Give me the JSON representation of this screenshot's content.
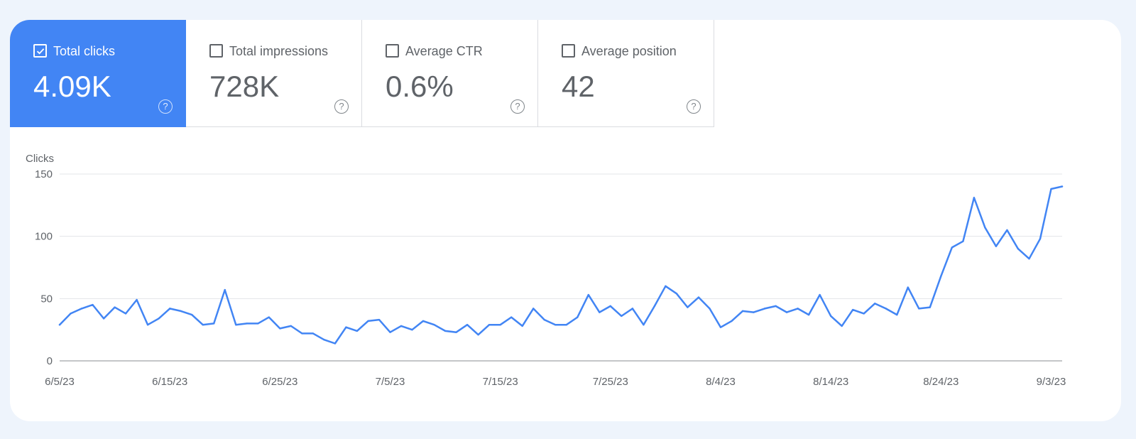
{
  "metrics": [
    {
      "label": "Total clicks",
      "value": "4.09K",
      "checked": true
    },
    {
      "label": "Total impressions",
      "value": "728K",
      "checked": false
    },
    {
      "label": "Average CTR",
      "value": "0.6%",
      "checked": false
    },
    {
      "label": "Average position",
      "value": "42",
      "checked": false
    }
  ],
  "help_glyph": "?",
  "colors": {
    "accent": "#4285f4",
    "line": "#4285f4",
    "page_bg": "#eef4fc"
  },
  "chart_data": {
    "type": "line",
    "ylabel": "Clicks",
    "ylim": [
      0,
      150
    ],
    "yticks": [
      0,
      50,
      100,
      150
    ],
    "xtick_labels": [
      "6/5/23",
      "6/15/23",
      "6/25/23",
      "7/5/23",
      "7/15/23",
      "7/25/23",
      "8/4/23",
      "8/14/23",
      "8/24/23",
      "9/3/23"
    ],
    "x_start": "6/5/23",
    "x_end": "9/4/23",
    "grid": true,
    "series": [
      {
        "values": [
          29,
          38,
          42,
          45,
          34,
          43,
          38,
          49,
          29,
          34,
          42,
          40,
          37,
          29,
          30,
          57,
          29,
          30,
          30,
          35,
          26,
          28,
          22,
          22,
          17,
          14,
          27,
          24,
          32,
          33,
          23,
          28,
          25,
          32,
          29,
          24,
          23,
          29,
          21,
          29,
          29,
          35,
          28,
          42,
          33,
          29,
          29,
          35,
          53,
          39,
          44,
          36,
          42,
          29,
          44,
          60,
          54,
          43,
          51,
          42,
          27,
          32,
          40,
          39,
          42,
          44,
          39,
          42,
          37,
          53,
          36,
          28,
          41,
          38,
          46,
          42,
          37,
          59,
          42,
          43,
          68,
          91,
          96,
          131,
          107,
          92,
          105,
          90,
          82,
          98,
          138,
          140
        ]
      }
    ]
  }
}
